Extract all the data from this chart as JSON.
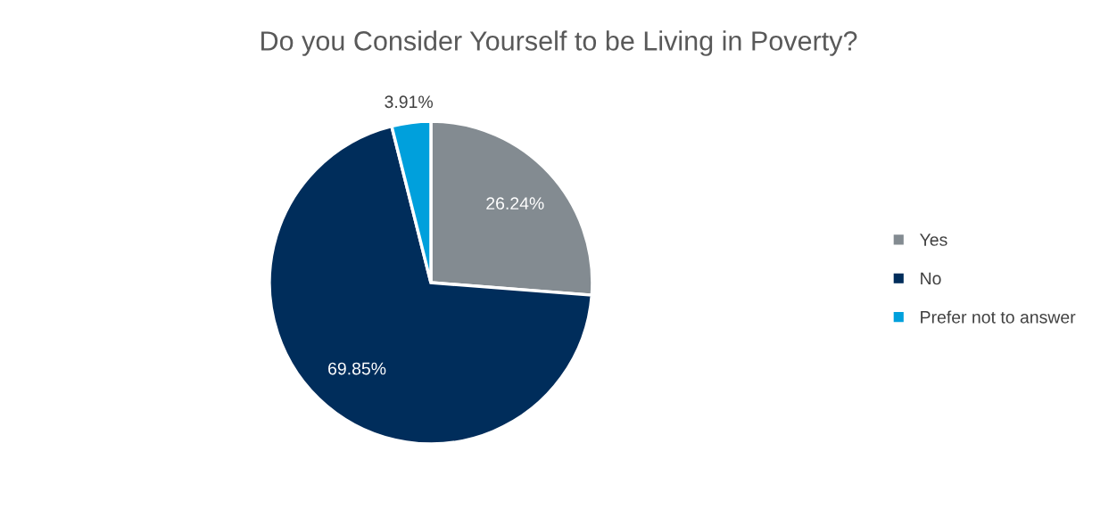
{
  "chart_data": {
    "type": "pie",
    "title": "Do you Consider Yourself to be Living in Poverty?",
    "categories": [
      "Yes",
      "No",
      "Prefer not to answer"
    ],
    "values": [
      26.24,
      69.85,
      3.91
    ],
    "colors": [
      "#838b91",
      "#002d5b",
      "#00a0dc"
    ],
    "value_labels": [
      "26.24%",
      "69.85%",
      "3.91%"
    ],
    "legend": "right"
  }
}
